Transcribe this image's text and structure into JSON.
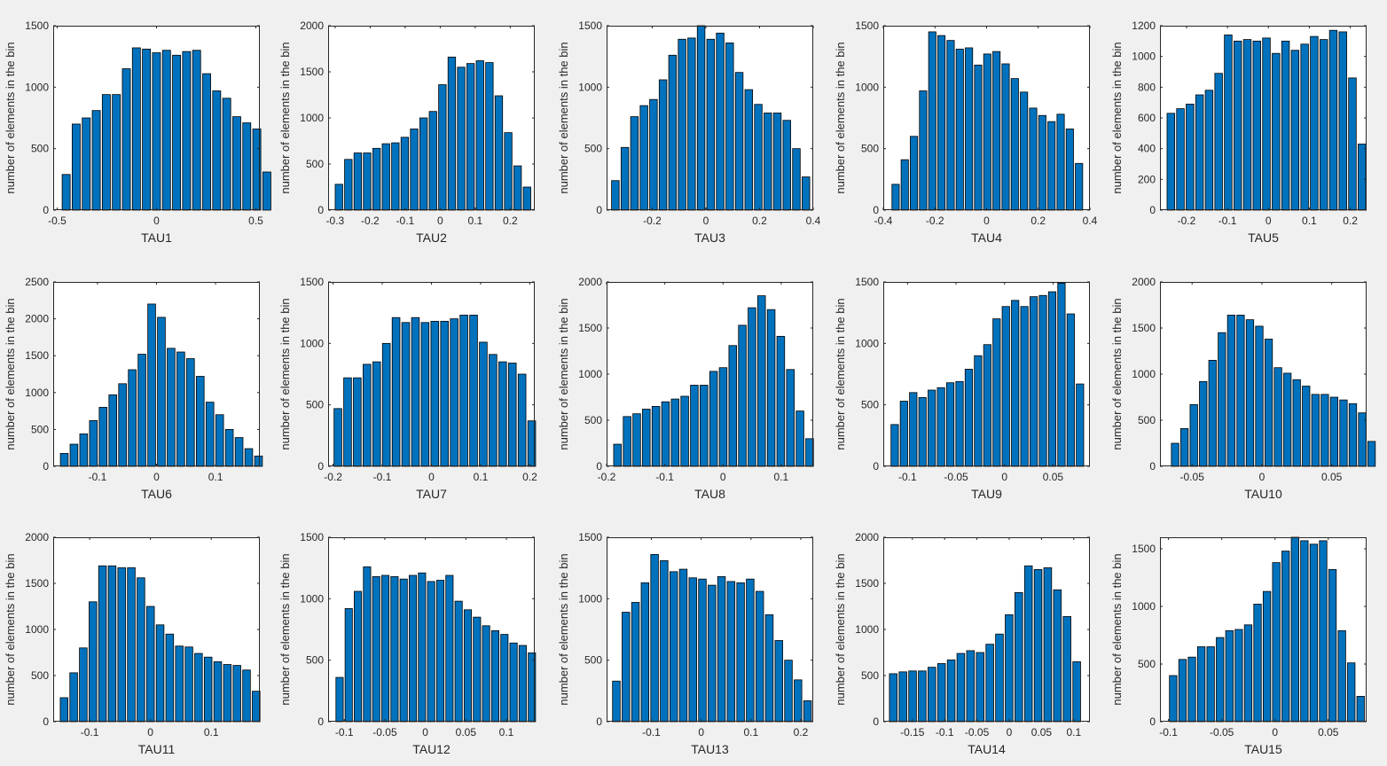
{
  "figure": {
    "background": "#f0f0f0",
    "bar_color": "#0072bd",
    "ylabel": "number of elements in the bin"
  },
  "chart_data": [
    {
      "type": "bar",
      "title": "",
      "xlabel": "TAU1",
      "ylabel": "number of elements in the bin",
      "xlim": [
        -0.52,
        0.52
      ],
      "ylim": [
        0,
        1500
      ],
      "xticks": [
        -0.5,
        0,
        0.5
      ],
      "xtick_labels": [
        "-0.5",
        "0",
        "0.5"
      ],
      "yticks": [
        0,
        500,
        1000,
        1500
      ],
      "ytick_labels": [
        "0",
        "500",
        "1000",
        "1500"
      ],
      "bin_start": -0.48,
      "bin_width": 0.0505,
      "values": [
        290,
        700,
        750,
        810,
        940,
        940,
        1150,
        1320,
        1310,
        1280,
        1300,
        1260,
        1290,
        1300,
        1110,
        970,
        910,
        760,
        710,
        660,
        310
      ]
    },
    {
      "type": "bar",
      "title": "",
      "xlabel": "TAU2",
      "ylabel": "number of elements in the bin",
      "xlim": [
        -0.32,
        0.27
      ],
      "ylim": [
        0,
        2000
      ],
      "xticks": [
        -0.3,
        -0.2,
        -0.1,
        0,
        0.1,
        0.2
      ],
      "xtick_labels": [
        "-0.3",
        "-0.2",
        "-0.1",
        "0",
        "0.1",
        "0.2"
      ],
      "yticks": [
        0,
        500,
        1000,
        1500,
        2000
      ],
      "ytick_labels": [
        "0",
        "500",
        "1000",
        "1500",
        "2000"
      ],
      "bin_start": -0.3025,
      "bin_width": 0.02685,
      "values": [
        280,
        550,
        620,
        620,
        670,
        720,
        730,
        790,
        880,
        1000,
        1070,
        1360,
        1660,
        1550,
        1590,
        1620,
        1600,
        1240,
        840,
        480,
        250
      ]
    },
    {
      "type": "bar",
      "title": "",
      "xlabel": "TAU3",
      "ylabel": "number of elements in the bin",
      "xlim": [
        -0.37,
        0.4
      ],
      "ylim": [
        0,
        1500
      ],
      "xticks": [
        -0.2,
        0,
        0.2,
        0.4
      ],
      "xtick_labels": [
        "-0.2",
        "0",
        "0.2",
        "0.4"
      ],
      "yticks": [
        0,
        500,
        1000,
        1500
      ],
      "ytick_labels": [
        "0",
        "500",
        "1000",
        "1500"
      ],
      "bin_start": -0.355,
      "bin_width": 0.0355,
      "values": [
        240,
        510,
        760,
        850,
        900,
        1060,
        1260,
        1390,
        1400,
        1500,
        1390,
        1440,
        1360,
        1120,
        980,
        860,
        790,
        790,
        730,
        500,
        270
      ]
    },
    {
      "type": "bar",
      "title": "",
      "xlabel": "TAU4",
      "ylabel": "number of elements in the bin",
      "xlim": [
        -0.4,
        0.4
      ],
      "ylim": [
        0,
        1500
      ],
      "xticks": [
        -0.4,
        -0.2,
        0,
        0.2,
        0.4
      ],
      "xtick_labels": [
        "-0.4",
        "-0.2",
        "0",
        "0.2",
        "0.4"
      ],
      "yticks": [
        0,
        500,
        1000,
        1500
      ],
      "ytick_labels": [
        "0",
        "500",
        "1000",
        "1500"
      ],
      "bin_start": -0.37,
      "bin_width": 0.0355,
      "values": [
        210,
        410,
        600,
        970,
        1450,
        1420,
        1380,
        1310,
        1320,
        1180,
        1270,
        1290,
        1190,
        1070,
        960,
        830,
        770,
        720,
        780,
        660,
        380
      ]
    },
    {
      "type": "bar",
      "title": "",
      "xlabel": "TAU5",
      "ylabel": "number of elements in the bin",
      "xlim": [
        -0.265,
        0.24
      ],
      "ylim": [
        0,
        1200
      ],
      "xticks": [
        -0.2,
        -0.1,
        0,
        0.1,
        0.2
      ],
      "xtick_labels": [
        "-0.2",
        "-0.1",
        "0",
        "0.1",
        "0.2"
      ],
      "yticks": [
        0,
        200,
        400,
        600,
        800,
        1000,
        1200
      ],
      "ytick_labels": [
        "0",
        "200",
        "400",
        "600",
        "800",
        "1000",
        "1200"
      ],
      "bin_start": -0.25,
      "bin_width": 0.02335,
      "values": [
        630,
        660,
        690,
        750,
        780,
        890,
        1140,
        1100,
        1110,
        1100,
        1120,
        1020,
        1100,
        1040,
        1080,
        1130,
        1110,
        1170,
        1160,
        860,
        430
      ]
    },
    {
      "type": "bar",
      "title": "",
      "xlabel": "TAU6",
      "ylabel": "number of elements in the bin",
      "xlim": [
        -0.175,
        0.175
      ],
      "ylim": [
        0,
        2500
      ],
      "xticks": [
        -0.1,
        0,
        0.1
      ],
      "xtick_labels": [
        "-0.1",
        "0",
        "0.1"
      ],
      "yticks": [
        0,
        500,
        1000,
        1500,
        2000,
        2500
      ],
      "ytick_labels": [
        "0",
        "500",
        "1000",
        "1500",
        "2000",
        "2500"
      ],
      "bin_start": -0.1645,
      "bin_width": 0.01645,
      "values": [
        175,
        300,
        440,
        620,
        800,
        970,
        1120,
        1310,
        1520,
        2200,
        2020,
        1600,
        1550,
        1460,
        1220,
        870,
        700,
        500,
        390,
        240,
        140
      ]
    },
    {
      "type": "bar",
      "title": "",
      "xlabel": "TAU7",
      "ylabel": "number of elements in the bin",
      "xlim": [
        -0.21,
        0.21
      ],
      "ylim": [
        0,
        1500
      ],
      "xticks": [
        -0.2,
        -0.1,
        0,
        0.1,
        0.2
      ],
      "xtick_labels": [
        "-0.2",
        "-0.1",
        "0",
        "0.1",
        "0.2"
      ],
      "yticks": [
        0,
        500,
        1000,
        1500
      ],
      "ytick_labels": [
        "0",
        "500",
        "1000",
        "1500"
      ],
      "bin_start": -0.2,
      "bin_width": 0.0197,
      "values": [
        470,
        720,
        720,
        830,
        850,
        1000,
        1210,
        1170,
        1210,
        1170,
        1180,
        1180,
        1200,
        1230,
        1230,
        1010,
        910,
        850,
        840,
        750,
        370
      ]
    },
    {
      "type": "bar",
      "title": "",
      "xlabel": "TAU8",
      "ylabel": "number of elements in the bin",
      "xlim": [
        -0.2,
        0.155
      ],
      "ylim": [
        0,
        2000
      ],
      "xticks": [
        -0.2,
        -0.1,
        0,
        0.1
      ],
      "xtick_labels": [
        "-0.2",
        "-0.1",
        "0",
        "0.1"
      ],
      "yticks": [
        0,
        500,
        1000,
        1500,
        2000
      ],
      "ytick_labels": [
        "0",
        "500",
        "1000",
        "1500",
        "2000"
      ],
      "bin_start": -0.1895,
      "bin_width": 0.0165,
      "values": [
        240,
        540,
        570,
        620,
        650,
        700,
        730,
        760,
        880,
        880,
        1030,
        1070,
        1310,
        1530,
        1720,
        1850,
        1700,
        1410,
        1050,
        600,
        300
      ]
    },
    {
      "type": "bar",
      "title": "",
      "xlabel": "TAU9",
      "ylabel": "number of elements in the bin",
      "xlim": [
        -0.125,
        0.088
      ],
      "ylim": [
        0,
        1500
      ],
      "xticks": [
        -0.1,
        -0.05,
        0,
        0.05
      ],
      "xtick_labels": [
        "-0.1",
        "-0.05",
        "0",
        "0.05"
      ],
      "yticks": [
        0,
        500,
        1000,
        1500
      ],
      "ytick_labels": [
        "0",
        "500",
        "1000",
        "1500"
      ],
      "bin_start": -0.118,
      "bin_width": 0.00955,
      "values": [
        340,
        530,
        600,
        560,
        620,
        640,
        680,
        690,
        790,
        900,
        990,
        1200,
        1300,
        1350,
        1300,
        1380,
        1390,
        1420,
        1490,
        1240,
        670
      ]
    },
    {
      "type": "bar",
      "title": "",
      "xlabel": "TAU10",
      "ylabel": "number of elements in the bin",
      "xlim": [
        -0.073,
        0.075
      ],
      "ylim": [
        0,
        2000
      ],
      "xticks": [
        -0.05,
        0,
        0.05
      ],
      "xtick_labels": [
        "-0.05",
        "0",
        "0.05"
      ],
      "yticks": [
        0,
        500,
        1000,
        1500,
        2000
      ],
      "ytick_labels": [
        "0",
        "500",
        "1000",
        "1500",
        "2000"
      ],
      "bin_start": -0.0655,
      "bin_width": 0.0067,
      "values": [
        250,
        410,
        670,
        920,
        1150,
        1450,
        1640,
        1640,
        1590,
        1520,
        1380,
        1070,
        1010,
        940,
        870,
        780,
        780,
        750,
        720,
        680,
        580,
        270
      ]
    },
    {
      "type": "bar",
      "title": "",
      "xlabel": "TAU11",
      "ylabel": "number of elements in the bin",
      "xlim": [
        -0.16,
        0.18
      ],
      "ylim": [
        0,
        2000
      ],
      "xticks": [
        -0.1,
        0,
        0.1
      ],
      "xtick_labels": [
        "-0.1",
        "0",
        "0.1"
      ],
      "yticks": [
        0,
        500,
        1000,
        1500,
        2000
      ],
      "ytick_labels": [
        "0",
        "500",
        "1000",
        "1500",
        "2000"
      ],
      "bin_start": -0.15,
      "bin_width": 0.0158,
      "values": [
        260,
        530,
        800,
        1300,
        1690,
        1690,
        1670,
        1670,
        1560,
        1250,
        1050,
        950,
        820,
        810,
        740,
        700,
        650,
        620,
        610,
        560,
        330
      ]
    },
    {
      "type": "bar",
      "title": "",
      "xlabel": "TAU12",
      "ylabel": "number of elements in the bin",
      "xlim": [
        -0.12,
        0.135
      ],
      "ylim": [
        0,
        1500
      ],
      "xticks": [
        -0.1,
        -0.05,
        0,
        0.05,
        0.1
      ],
      "xtick_labels": [
        "-0.1",
        "-0.05",
        "0",
        "0.05",
        "0.1"
      ],
      "yticks": [
        0,
        500,
        1000,
        1500
      ],
      "ytick_labels": [
        "0",
        "500",
        "1000",
        "1500"
      ],
      "bin_start": -0.1115,
      "bin_width": 0.0113,
      "values": [
        360,
        920,
        1060,
        1260,
        1180,
        1190,
        1180,
        1160,
        1190,
        1210,
        1140,
        1150,
        1190,
        980,
        910,
        850,
        780,
        740,
        710,
        640,
        620,
        560
      ]
    },
    {
      "type": "bar",
      "title": "",
      "xlabel": "TAU13",
      "ylabel": "number of elements in the bin",
      "xlim": [
        -0.19,
        0.225
      ],
      "ylim": [
        0,
        1500
      ],
      "xticks": [
        -0.1,
        0,
        0.1,
        0.2
      ],
      "xtick_labels": [
        "-0.1",
        "0",
        "0.1",
        "0.2"
      ],
      "yticks": [
        0,
        500,
        1000,
        1500
      ],
      "ytick_labels": [
        "0",
        "500",
        "1000",
        "1500"
      ],
      "bin_start": -0.18,
      "bin_width": 0.0192,
      "values": [
        330,
        890,
        970,
        1130,
        1360,
        1310,
        1220,
        1240,
        1170,
        1160,
        1110,
        1180,
        1140,
        1130,
        1160,
        1060,
        870,
        660,
        500,
        340,
        170
      ]
    },
    {
      "type": "bar",
      "title": "",
      "xlabel": "TAU14",
      "ylabel": "number of elements in the bin",
      "xlim": [
        -0.195,
        0.125
      ],
      "ylim": [
        0,
        2000
      ],
      "xticks": [
        -0.15,
        -0.1,
        -0.05,
        0,
        0.05,
        0.1
      ],
      "xtick_labels": [
        "-0.15",
        "-0.1",
        "-0.05",
        "0",
        "0.05",
        "0.1"
      ],
      "yticks": [
        0,
        500,
        1000,
        1500,
        2000
      ],
      "ytick_labels": [
        "0",
        "500",
        "1000",
        "1500",
        "2000"
      ],
      "bin_start": -0.187,
      "bin_width": 0.01495,
      "values": [
        520,
        540,
        550,
        550,
        590,
        630,
        670,
        740,
        770,
        750,
        840,
        950,
        1160,
        1400,
        1690,
        1650,
        1670,
        1430,
        1140,
        650
      ]
    },
    {
      "type": "bar",
      "title": "",
      "xlabel": "TAU15",
      "ylabel": "number of elements in the bin",
      "xlim": [
        -0.108,
        0.086
      ],
      "ylim": [
        0,
        1600
      ],
      "xticks": [
        -0.1,
        -0.05,
        0,
        0.05
      ],
      "xtick_labels": [
        "-0.1",
        "-0.05",
        "0",
        "0.05"
      ],
      "yticks": [
        0,
        500,
        1000,
        1500
      ],
      "ytick_labels": [
        "0",
        "500",
        "1000",
        "1500"
      ],
      "bin_start": -0.1,
      "bin_width": 0.0088,
      "values": [
        400,
        540,
        560,
        650,
        650,
        730,
        790,
        800,
        840,
        1020,
        1130,
        1380,
        1480,
        1600,
        1570,
        1540,
        1570,
        1320,
        790,
        510,
        220
      ]
    }
  ]
}
